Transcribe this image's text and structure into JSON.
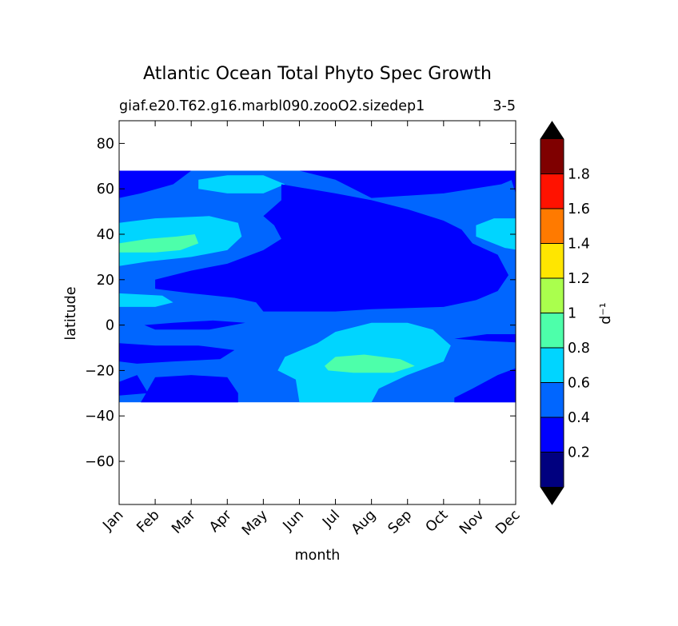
{
  "chart_data": {
    "type": "heatmap",
    "title": "Atlantic Ocean Total Phyto Spec Growth",
    "subtitle_left": "giaf.e20.T62.g16.marbl090.zooO2.sizedep1",
    "subtitle_right": "3-5",
    "xlabel": "month",
    "ylabel": "latitude",
    "x_categories": [
      "Jan",
      "Feb",
      "Mar",
      "Apr",
      "May",
      "Jun",
      "Jul",
      "Aug",
      "Sep",
      "Oct",
      "Nov",
      "Dec"
    ],
    "ylim": [
      -79,
      90
    ],
    "y_ticks": [
      80,
      60,
      40,
      20,
      0,
      -20,
      -40,
      -60
    ],
    "y_tick_labels": [
      "80",
      "60",
      "40",
      "20",
      "0",
      "−20",
      "−40",
      "−60"
    ],
    "data_lat_range": [
      -34,
      68
    ],
    "colorbar": {
      "label": "d⁻¹",
      "extend": "both",
      "levels": [
        0,
        0.2,
        0.4,
        0.6,
        0.8,
        1.0,
        1.2,
        1.4,
        1.6,
        1.8,
        2.0
      ],
      "colors": [
        "#00007f",
        "#0000ff",
        "#0066ff",
        "#00d5ff",
        "#4dffaa",
        "#aaff4d",
        "#ffe600",
        "#ff7a00",
        "#ff1200",
        "#7f0000"
      ],
      "under_color": "#000000",
      "over_color": "#000000",
      "tick_values": [
        0.2,
        0.4,
        0.6,
        0.8,
        1.0,
        1.2,
        1.4,
        1.6,
        1.8
      ],
      "tick_labels": [
        "0.2",
        "0.4",
        "0.6",
        "0.8",
        "1",
        "1.2",
        "1.4",
        "1.6",
        "1.8"
      ]
    },
    "field_background_value": 0.5,
    "regions": [
      {
        "name": "cyan-north-spring",
        "value": 0.7,
        "points": [
          [
            3.2,
            64
          ],
          [
            4.0,
            66
          ],
          [
            5.0,
            66
          ],
          [
            5.6,
            62
          ],
          [
            5.0,
            58
          ],
          [
            4.0,
            58
          ],
          [
            3.2,
            60
          ]
        ]
      },
      {
        "name": "blue-arctic-spring",
        "value": 0.3,
        "points": [
          [
            1,
            68
          ],
          [
            3.0,
            68
          ],
          [
            2.5,
            62
          ],
          [
            1.6,
            58
          ],
          [
            1,
            56
          ]
        ]
      },
      {
        "name": "blue-arctic-summer",
        "value": 0.3,
        "points": [
          [
            6,
            68
          ],
          [
            12.5,
            68
          ],
          [
            11.6,
            62
          ],
          [
            10.0,
            58
          ],
          [
            8.0,
            56
          ],
          [
            7.0,
            64
          ]
        ]
      },
      {
        "name": "blue-arctic-winter",
        "value": 0.3,
        "points": [
          [
            11.8,
            68
          ],
          [
            12.5,
            68
          ],
          [
            12.5,
            52
          ],
          [
            12.0,
            58
          ]
        ]
      },
      {
        "name": "cyan-north-winter",
        "value": 0.7,
        "points": [
          [
            1,
            45
          ],
          [
            2.0,
            47
          ],
          [
            3.5,
            48
          ],
          [
            4.3,
            45
          ],
          [
            4.4,
            39
          ],
          [
            4.0,
            33
          ],
          [
            3.0,
            30
          ],
          [
            1.8,
            28
          ],
          [
            1,
            26
          ]
        ]
      },
      {
        "name": "cyan-north-autumn",
        "value": 0.7,
        "points": [
          [
            10.9,
            44
          ],
          [
            11.4,
            47
          ],
          [
            12.5,
            47
          ],
          [
            12.5,
            32
          ],
          [
            11.7,
            34
          ],
          [
            10.9,
            39
          ]
        ]
      },
      {
        "name": "blue-main-gyre",
        "value": 0.3,
        "points": [
          [
            5.5,
            62
          ],
          [
            7.0,
            58
          ],
          [
            8.0,
            55
          ],
          [
            9.0,
            51
          ],
          [
            10.0,
            46
          ],
          [
            10.5,
            42
          ],
          [
            10.8,
            36
          ],
          [
            11.5,
            31
          ],
          [
            11.8,
            22
          ],
          [
            11.5,
            15
          ],
          [
            10.9,
            11
          ],
          [
            10.0,
            8
          ],
          [
            8.0,
            7
          ],
          [
            7.0,
            6
          ],
          [
            5.0,
            6
          ],
          [
            4.8,
            10
          ],
          [
            4.2,
            12
          ],
          [
            3.0,
            14
          ],
          [
            2.0,
            16
          ],
          [
            2.0,
            20
          ],
          [
            3.0,
            24
          ],
          [
            4.0,
            27
          ],
          [
            5.0,
            33
          ],
          [
            5.5,
            38
          ],
          [
            5.3,
            44
          ],
          [
            5.0,
            48
          ],
          [
            5.5,
            55
          ]
        ]
      },
      {
        "name": "cyan-tropical-winter",
        "value": 0.7,
        "points": [
          [
            1,
            14
          ],
          [
            2.2,
            13
          ],
          [
            2.5,
            10
          ],
          [
            2.0,
            8
          ],
          [
            1,
            8
          ]
        ]
      },
      {
        "name": "green-north-winter",
        "value": 0.9,
        "points": [
          [
            1,
            36
          ],
          [
            1.8,
            38
          ],
          [
            2.6,
            39
          ],
          [
            3.1,
            40
          ],
          [
            3.2,
            36
          ],
          [
            2.7,
            33
          ],
          [
            2.0,
            32
          ],
          [
            1,
            32
          ]
        ]
      },
      {
        "name": "blue-equator-winter",
        "value": 0.3,
        "points": [
          [
            1.7,
            0
          ],
          [
            2.5,
            1
          ],
          [
            3.6,
            2
          ],
          [
            4.5,
            1
          ],
          [
            3.5,
            -2
          ],
          [
            2.0,
            -2
          ]
        ]
      },
      {
        "name": "blue-south-winter",
        "value": 0.3,
        "points": [
          [
            1,
            -8
          ],
          [
            2.0,
            -9
          ],
          [
            3.2,
            -9
          ],
          [
            4.2,
            -11
          ],
          [
            3.8,
            -15
          ],
          [
            2.5,
            -16
          ],
          [
            1.5,
            -17
          ],
          [
            1,
            -16
          ]
        ]
      },
      {
        "name": "blue-equator-autumn",
        "value": 0.3,
        "points": [
          [
            10.3,
            -6
          ],
          [
            11.2,
            -4
          ],
          [
            12.5,
            -4
          ],
          [
            12.5,
            -8
          ],
          [
            11.2,
            -7
          ]
        ]
      },
      {
        "name": "blue-south-autumn",
        "value": 0.3,
        "points": [
          [
            10.3,
            -32
          ],
          [
            10.8,
            -28
          ],
          [
            11.5,
            -22
          ],
          [
            12.0,
            -19
          ],
          [
            12.5,
            -17
          ],
          [
            12.5,
            -34
          ],
          [
            10.3,
            -34
          ]
        ]
      },
      {
        "name": "blue-south-east",
        "value": 0.3,
        "points": [
          [
            1.6,
            -34
          ],
          [
            2.0,
            -23
          ],
          [
            3.0,
            -22
          ],
          [
            4.0,
            -23
          ],
          [
            4.3,
            -30
          ],
          [
            4.3,
            -34
          ]
        ]
      },
      {
        "name": "blue-south-edge",
        "value": 0.3,
        "points": [
          [
            1,
            -25
          ],
          [
            1.5,
            -22
          ],
          [
            1.8,
            -30
          ],
          [
            1,
            -31
          ]
        ]
      },
      {
        "name": "cyan-austral",
        "value": 0.7,
        "points": [
          [
            5.4,
            -20
          ],
          [
            5.6,
            -14
          ],
          [
            6.5,
            -8
          ],
          [
            7.0,
            -3
          ],
          [
            8.0,
            1
          ],
          [
            9.0,
            1
          ],
          [
            9.7,
            -2
          ],
          [
            10.2,
            -9
          ],
          [
            10.0,
            -16
          ],
          [
            9.0,
            -22
          ],
          [
            8.2,
            -28
          ],
          [
            8.0,
            -34
          ],
          [
            6.0,
            -34
          ],
          [
            5.9,
            -24
          ]
        ]
      },
      {
        "name": "green-austral",
        "value": 0.9,
        "points": [
          [
            6.7,
            -18
          ],
          [
            7.0,
            -14
          ],
          [
            7.8,
            -13
          ],
          [
            8.8,
            -15
          ],
          [
            9.2,
            -18
          ],
          [
            8.6,
            -21
          ],
          [
            7.5,
            -21
          ],
          [
            6.8,
            -20
          ]
        ]
      }
    ]
  }
}
